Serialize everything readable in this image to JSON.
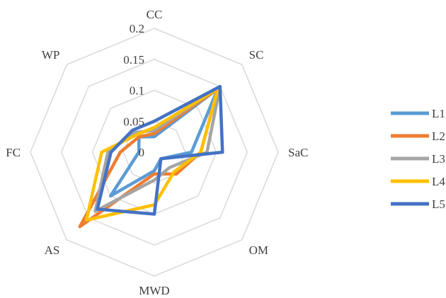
{
  "chart_data": {
    "type": "radar",
    "axes": [
      "CC",
      "SC",
      "SaC",
      "OM",
      "MWD",
      "AS",
      "FC",
      "WP"
    ],
    "rmin": 0,
    "rmax": 0.2,
    "ticks": [
      0,
      0.05,
      0.1,
      0.15,
      0.2
    ],
    "tick_labels": [
      "0",
      "0.05",
      "0.1",
      "0.15",
      "0.2"
    ],
    "grid": true,
    "legend_position": "right",
    "series": [
      {
        "name": "L1",
        "color": "#5B9BD5",
        "values": [
          0.025,
          0.145,
          0.06,
          0.015,
          0.03,
          0.1,
          0.025,
          0.035
        ]
      },
      {
        "name": "L2",
        "color": "#ED7D31",
        "values": [
          0.03,
          0.145,
          0.075,
          0.05,
          0.035,
          0.17,
          0.055,
          0.035
        ]
      },
      {
        "name": "L3",
        "color": "#A5A5A5",
        "values": [
          0.035,
          0.15,
          0.085,
          0.035,
          0.045,
          0.135,
          0.075,
          0.045
        ]
      },
      {
        "name": "L4",
        "color": "#FFC000",
        "values": [
          0.04,
          0.145,
          0.075,
          0.045,
          0.085,
          0.155,
          0.085,
          0.04
        ]
      },
      {
        "name": "L5",
        "color": "#4472C4",
        "values": [
          0.05,
          0.15,
          0.11,
          0.015,
          0.1,
          0.13,
          0.07,
          0.05
        ]
      }
    ]
  }
}
